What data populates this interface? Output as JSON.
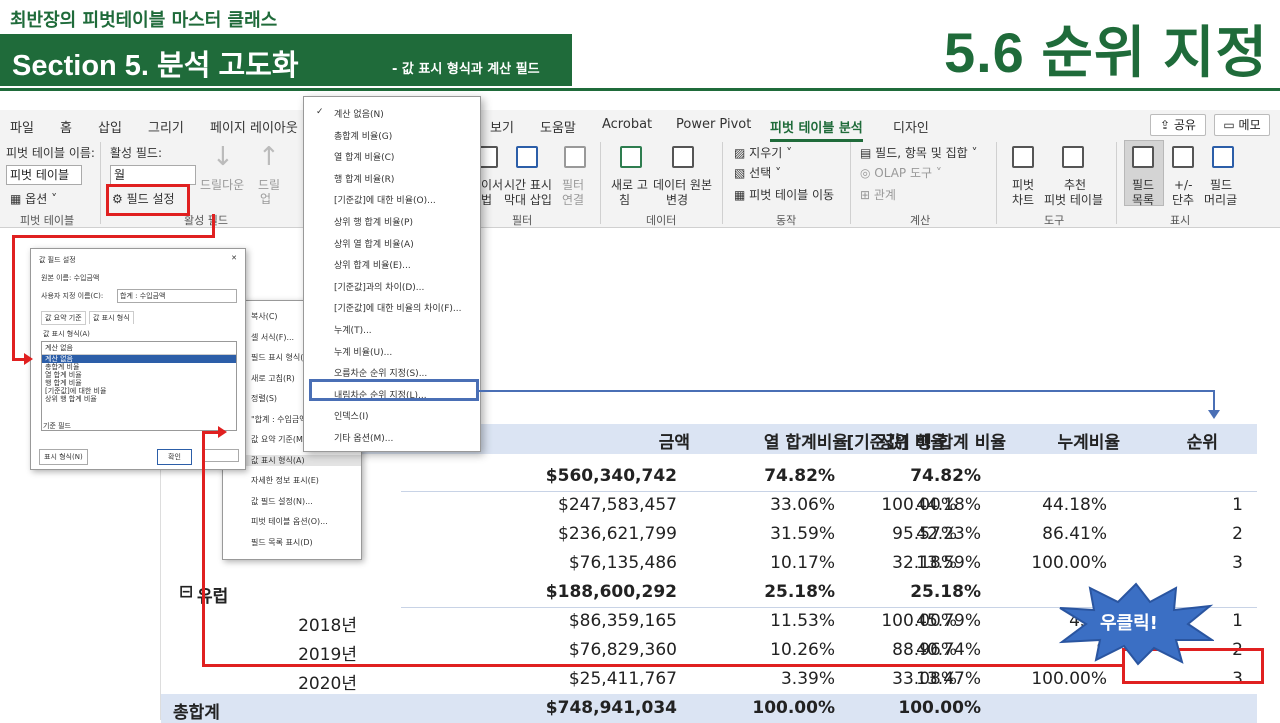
{
  "header": {
    "subtitle": "최반장의 피벗테이블 마스터 클래스",
    "section": "Section 5. 분석 고도화",
    "section_small": "- 값 표시 형식과 계산 필드",
    "topic": "5.6 순위 지정"
  },
  "ribbon": {
    "tabs": [
      "파일",
      "홈",
      "삽입",
      "그리기",
      "페이지 레이아웃",
      "보기",
      "도움말",
      "Acrobat",
      "Power Pivot",
      "피벗 테이블 분석",
      "디자인"
    ],
    "active_tab": "피벗 테이블 분석",
    "share": "공유",
    "memo": "메모",
    "pivot_name_label": "피벗 테이블 이름:",
    "pivot_name_value": "피벗 테이블",
    "options_label": "옵션",
    "active_field_label": "활성 필드:",
    "active_field_value": "월",
    "field_settings": "필드 설정",
    "drilldown": "드릴다운",
    "drillup": "드릴",
    "drillup2": "업",
    "timeline": [
      "이서",
      "시간 표시",
      "필터"
    ],
    "timeline2": [
      "법",
      "막대 삽입",
      "연결"
    ],
    "refresh": "새로 고",
    "refresh2": "침",
    "datasource": "데이터 원본",
    "datasource2": "변경",
    "clear": "지우기",
    "select": "선택",
    "move": "피벗 테이블 이동",
    "fields_items": "필드, 항목 및 집합",
    "olap": "OLAP 도구",
    "relations": "관계",
    "pivotchart": "피벗",
    "pivotchart2": "차트",
    "recommended": "추천",
    "recommended2": "피벗 테이블",
    "fieldlist": "필드",
    "fieldlist2": "목록",
    "plusminus": "+/-",
    "plusminus2": "단추",
    "fieldheaders": "필드",
    "fieldheaders2": "머리글",
    "groups": [
      "피벗 테이블",
      "활성 필드",
      "필터",
      "데이터",
      "동작",
      "계산",
      "도구",
      "표시"
    ]
  },
  "menu_items": [
    "계산 없음(N)",
    "총합계 비율(G)",
    "열 합계 비율(C)",
    "행 합계 비율(R)",
    "[기준값]에 대한 비율(O)...",
    "상위 행 합계 비율(P)",
    "상위 열 합계 비율(A)",
    "상위 합계 비율(E)...",
    "[기준값]과의 차이(D)...",
    "[기준값]에 대한 비율의 차이(F)...",
    "누계(T)...",
    "누계 비율(U)...",
    "오름차순 순위 지정(S)...",
    "내림차순 순위 지정(L)...",
    "인덱스(I)",
    "기타 옵션(M)..."
  ],
  "context_items": [
    "복사(C)",
    "셀 서식(F)...",
    "필드 표시 형식(T)...",
    "새로 고침(R)",
    "정렬(S)",
    "\"합계 : 수입금액\" 제거(V)",
    "값 요약 기준(M)",
    "값 표시 형식(A)",
    "자세한 정보 표시(E)",
    "값 필드 설정(N)...",
    "피벗 테이블 옵션(O)...",
    "필드 목록 표시(D)"
  ],
  "dialog": {
    "title": "값 필드 설정",
    "source": "원본 이름: 수입금액",
    "custom_label": "사용자 지정 이름(C):",
    "custom_value": "합계 : 수입금액",
    "tab1": "값 요약 기준",
    "tab2": "값 표시 형식",
    "show_as": "값 표시 형식(A)",
    "current": "계산 없음",
    "list": [
      "계산 없음",
      "총합계 비율",
      "열 합계 비율",
      "행 합계 비율",
      "[기준값]에 대한 비율",
      "상위 행 합계 비율"
    ],
    "base_field": "기준 필드",
    "number_format": "표시 형식(N)",
    "ok": "확인"
  },
  "table": {
    "headers": [
      "금액",
      "열 합계비율",
      "상위 행 합계 비율",
      "[기준값] 비율",
      "누계비율",
      "순위"
    ],
    "rows": [
      {
        "label": "",
        "amount": "$560,340,742",
        "col": "74.82%",
        "parent": "74.82%",
        "base": "",
        "cum": "",
        "rank": "",
        "bold": true
      },
      {
        "label": "",
        "amount": "$247,583,457",
        "col": "33.06%",
        "parent": "44.18%",
        "base": "100.00%",
        "cum": "44.18%",
        "rank": "1"
      },
      {
        "label": "",
        "amount": "$236,621,799",
        "col": "31.59%",
        "parent": "42.23%",
        "base": "95.57%",
        "cum": "86.41%",
        "rank": "2"
      },
      {
        "label": "",
        "amount": "$76,135,486",
        "col": "10.17%",
        "parent": "13.59%",
        "base": "32.18%",
        "cum": "100.00%",
        "rank": "3"
      },
      {
        "label": "유럽",
        "amount": "$188,600,292",
        "col": "25.18%",
        "parent": "25.18%",
        "base": "",
        "cum": "",
        "rank": "",
        "bold": true,
        "group": true
      },
      {
        "label": "2018년",
        "amount": "$86,359,165",
        "col": "11.53%",
        "parent": "45.79%",
        "base": "100.00%",
        "cum": "45.7",
        "rank": "1"
      },
      {
        "label": "2019년",
        "amount": "$76,829,360",
        "col": "10.26%",
        "parent": "40.74%",
        "base": "88.96%",
        "cum": "8",
        "rank": "2"
      },
      {
        "label": "2020년",
        "amount": "$25,411,767",
        "col": "3.39%",
        "parent": "13.47%",
        "base": "33.08%",
        "cum": "100.00%",
        "rank": "3"
      }
    ],
    "total": {
      "label": "총합계",
      "amount": "$748,941,034",
      "col": "100.00%",
      "parent": "100.00%"
    }
  },
  "callout": "우클릭!",
  "colors": {
    "brand_green": "#1f6b3a",
    "highlight_red": "#e02020",
    "link_blue": "#4a6fb5",
    "header_blue": "#dbe4f3"
  }
}
